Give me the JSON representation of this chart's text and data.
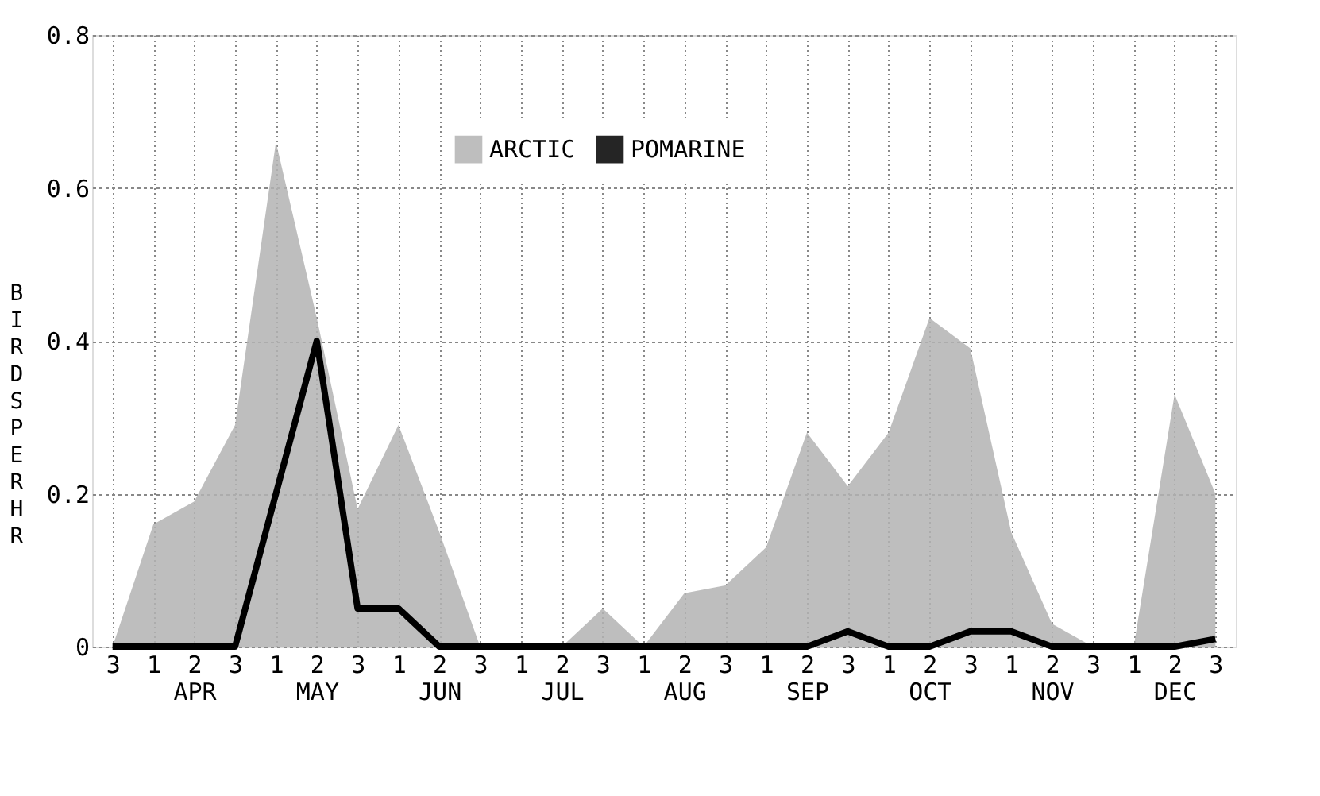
{
  "chart_data": {
    "type": "area",
    "ylabel": "BIRDS PER HR",
    "categories": [
      "3",
      "1",
      "2\nAPR",
      "3",
      "1",
      "2\nMAY",
      "3",
      "1",
      "2\nJUN",
      "3",
      "1",
      "2\nJUL",
      "3",
      "1",
      "2\nAUG",
      "3",
      "1",
      "2\nSEP",
      "3",
      "1",
      "2\nOCT",
      "3",
      "1",
      "2\nNOV",
      "3",
      "1",
      "2\nDEC",
      "3"
    ],
    "ylim": [
      0,
      0.8
    ],
    "yticks": [
      0,
      0.2,
      0.4,
      0.6,
      0.8
    ],
    "grid": true,
    "legend": "top",
    "series": [
      {
        "name": "ARCTIC",
        "color": "#b3b3b3",
        "values": [
          0,
          0.16,
          0.19,
          0.29,
          0.66,
          0.43,
          0.18,
          0.29,
          0.15,
          0,
          0,
          0,
          0.05,
          0,
          0.07,
          0.08,
          0.13,
          0.28,
          0.21,
          0.28,
          0.43,
          0.39,
          0.15,
          0.03,
          0,
          0,
          0.33,
          0.2
        ]
      },
      {
        "name": "POMARINE",
        "type": "line",
        "color": "#000000",
        "values": [
          0,
          0,
          0,
          0,
          0.2,
          0.4,
          0.05,
          0.05,
          0,
          0,
          0,
          0,
          0,
          0,
          0,
          0,
          0,
          0,
          0.02,
          0,
          0,
          0.02,
          0.02,
          0,
          0,
          0,
          0,
          0.01
        ]
      }
    ]
  }
}
